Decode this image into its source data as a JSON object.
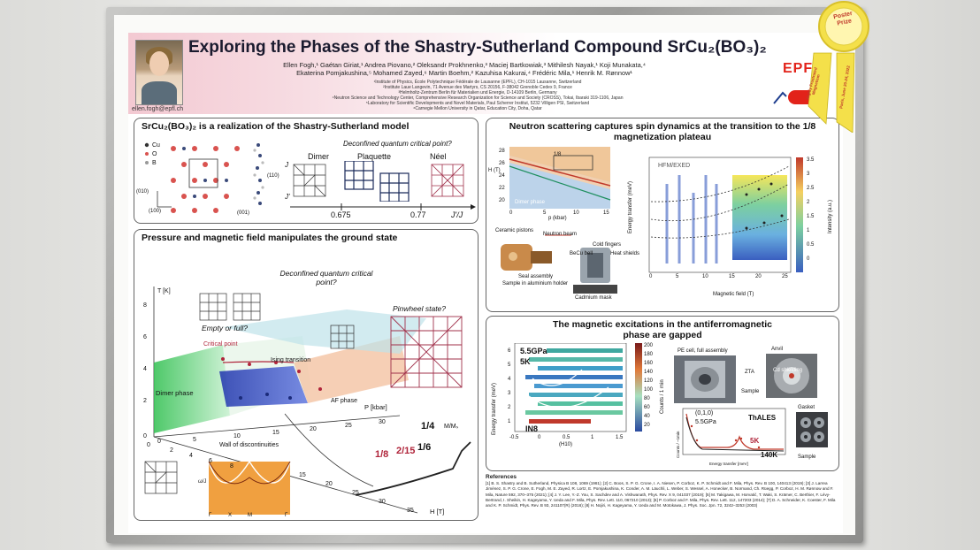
{
  "poster": {
    "title": "Exploring the Phases of the Shastry-Sutherland Compound SrCu₂(BO₃)₂",
    "authors_line1": "Ellen Fogh,¹ Gaétan Giriat,¹ Andrea Piovano,² Oleksandr Prokhnenko,³ Maciej Bartkowiak,³ Mithilesh Nayak,¹ Koji Munakata,⁴",
    "authors_line2": "Ekaterina Pomjakushina,⁵ Mohamed Zayed,⁶ Martin Boehm,² Kazuhisa Kakurai,⁴ Frédéric Mila,¹ Henrik M. Rønnow¹",
    "affiliations": [
      "¹Institute of Physics, École Polytechnique Fédérale de Lausanne (EPFL), CH-1015 Lausanne, Switzerland",
      "²Institute Laue Langevin, 71 Avenue des Martyrs, CS 20156, F-38042 Grenoble Cedex 9, France",
      "³Helmholtz-Zentrum Berlin für Materialien und Energie, D-14109 Berlin, Germany",
      "⁴Neutron Science and Technology Center, Comprehensive Research Organization for Science and Society (CROSS), Tokai, Ibaraki 319-1106, Japan",
      "⁵Laboratory for Scientific Developments and Novel Materials, Paul Scherrer Institut, 5232 Villigen PSI, Switzerland",
      "⁶Carnegie Mellon University in Qatar, Education City, Doha, Qatar"
    ],
    "email": "ellen.fogh@epfl.ch",
    "logo": "EPFL"
  },
  "award": {
    "label": "Poster Prize",
    "ribbon_text": "Highly Frustrated Magnetism",
    "ribbon_text2": "Paris, June 20-24, 2022"
  },
  "panel1": {
    "title": "SrCu₂(BO₃)₂ is a realization of the Shastry-Sutherland model",
    "legend": [
      "Cu",
      "O",
      "B"
    ],
    "axis_labels": [
      "(010)",
      "(100)",
      "(001)",
      "(110)"
    ],
    "couplings": [
      "J",
      "J'"
    ],
    "question": "Deconfined quantum critical point?",
    "phases": [
      "Dimer",
      "Plaquette",
      "Néel"
    ],
    "ticks": [
      "0.675",
      "0.77"
    ],
    "axis": "J'/J"
  },
  "panel2": {
    "title": "Pressure and magnetic field manipulates the ground state",
    "question1": "Deconfined quantum critical point?",
    "question2": "Empty or full?",
    "question3": "Pinwheel state?",
    "labels": [
      "Critical point",
      "Ising transition",
      "Dimer phase",
      "Plaquette phase",
      "AF phase",
      "Wall of discontinuities"
    ],
    "t_axis": "T [K]",
    "t_ticks": [
      "0",
      "2",
      "4",
      "6",
      "8"
    ],
    "p_axis": "P [kbar]",
    "p_ticks": [
      "0",
      "5",
      "10",
      "15",
      "20",
      "25",
      "30"
    ],
    "h_axis": "H [T]",
    "h_ticks": [
      "0",
      "2",
      "4",
      "6",
      "8",
      "15",
      "20",
      "25",
      "30",
      "35"
    ],
    "plateaus": [
      "1/8",
      "2/15",
      "1/6",
      "1/4"
    ],
    "m_axis": "M/Mₛ",
    "inset_axis": [
      "Γ",
      "X",
      "M",
      "Γ"
    ],
    "inset_ylabel": "ω/J"
  },
  "panel3": {
    "title": "Neutron scattering captures spin dynamics at the transition to the 1/8 magnetization plateau",
    "phase_labels": [
      "Dimer phase",
      "1/8"
    ],
    "y_axis": "H (T)",
    "y_ticks": [
      "20",
      "22",
      "24",
      "26",
      "28"
    ],
    "x_axis": "p (kbar)",
    "x_ticks": [
      "0",
      "5",
      "10",
      "15"
    ],
    "apparatus": [
      "Neutron beam",
      "Ceramic pistons",
      "Seal assembly",
      "Sample in aluminium holder",
      "BeCu bell",
      "Cold fingers",
      "Heat shields",
      "Cadmium mask"
    ],
    "instrument": "HFM/EXED",
    "map_xaxis": "Magnetic field (T)",
    "map_xticks": [
      "0",
      "5",
      "10",
      "15",
      "20",
      "25"
    ],
    "map_ylabel": "Energy transfer (meV)",
    "cbar_ticks": [
      "3.5",
      "3",
      "2.5",
      "2",
      "1.5",
      "1",
      "0.5",
      "0"
    ],
    "cbar_label": "Intensity (a.u.)"
  },
  "panel4": {
    "title": "The magnetic excitations in the antiferromagnetic phase are gapped",
    "pressure": "5.5GPa",
    "temp": "5K",
    "instrument1": "IN8",
    "y_axis": "Energy transfer (meV)",
    "y_ticks": [
      "6",
      "5",
      "4",
      "3",
      "2",
      "1"
    ],
    "x_axis": "(H10)",
    "x_ticks": [
      "-0.5",
      "0",
      "0.5",
      "1",
      "1.5"
    ],
    "cbar_ticks": [
      "200",
      "180",
      "160",
      "140",
      "120",
      "100",
      "80",
      "60",
      "40",
      "20"
    ],
    "cbar_label": "Counts / 1 min",
    "cell_labels": [
      "PE cell, full assembly",
      "Anvil",
      "ZTA",
      "Sample",
      "Cd shielding",
      "Gasket",
      "Sample"
    ],
    "inset_title": "(0,1,0)",
    "inset_pressure": "5.5GPa",
    "instrument2": "ThALES",
    "inset_temps": [
      "5K",
      "140K"
    ],
    "inset_xaxis": "Energy transfer [meV]",
    "inset_ylabel": "Counts / ~1min"
  },
  "references": {
    "title": "References",
    "text": "[1] B. S. Shastry and B. Sutherland, Physica B 108, 1069 (1981); [2] C. Boos, S. P. G. Crone, I. A. Niesen, P. Corboz, K. P. Schmidt and F. Mila, Phys. Rev. B 100, 140413 (2019); [3] J. Larrea Jiménez, S. P. G. Crone, E. Fogh, M. E. Zayed, R. Lortz, E. Pomjakushina, K. Conder, A. M. Läuchli, L. Weber, S. Wessel, A. Honecker, B. Normand, Ch. Rüegg, P. Corboz, H. M. Rønnow and F. Mila, Nature 592, 370–375 (2021); [4] J. Y. Lee, Y.-Z. You, S. Sachdev and A. Vishwanath, Phys. Rev. X 9, 041037 (2019); [5] M. Takigawa, M. Horvatić, T. Waki, S. Krämer, C. Berthier, F. Lévy-Bertrand, I. Sheikin, H. Kageyama, Y. Ueda and F. Mila, Phys. Rev. Lett. 110, 067210 (2013); [6] P. Corboz and F. Mila, Phys. Rev. Lett. 112, 147203 (2014); [7] D. A. Schneider, K. Coester, F. Mila and K. P. Schmidt, Phys. Rev. B 93, 241107(R) (2016); [8] H. Nojiri, H. Kageyama, Y. Ueda and M. Motokawa, J. Phys. Soc. Jpn. 72, 3242–3253 (2003)"
  }
}
